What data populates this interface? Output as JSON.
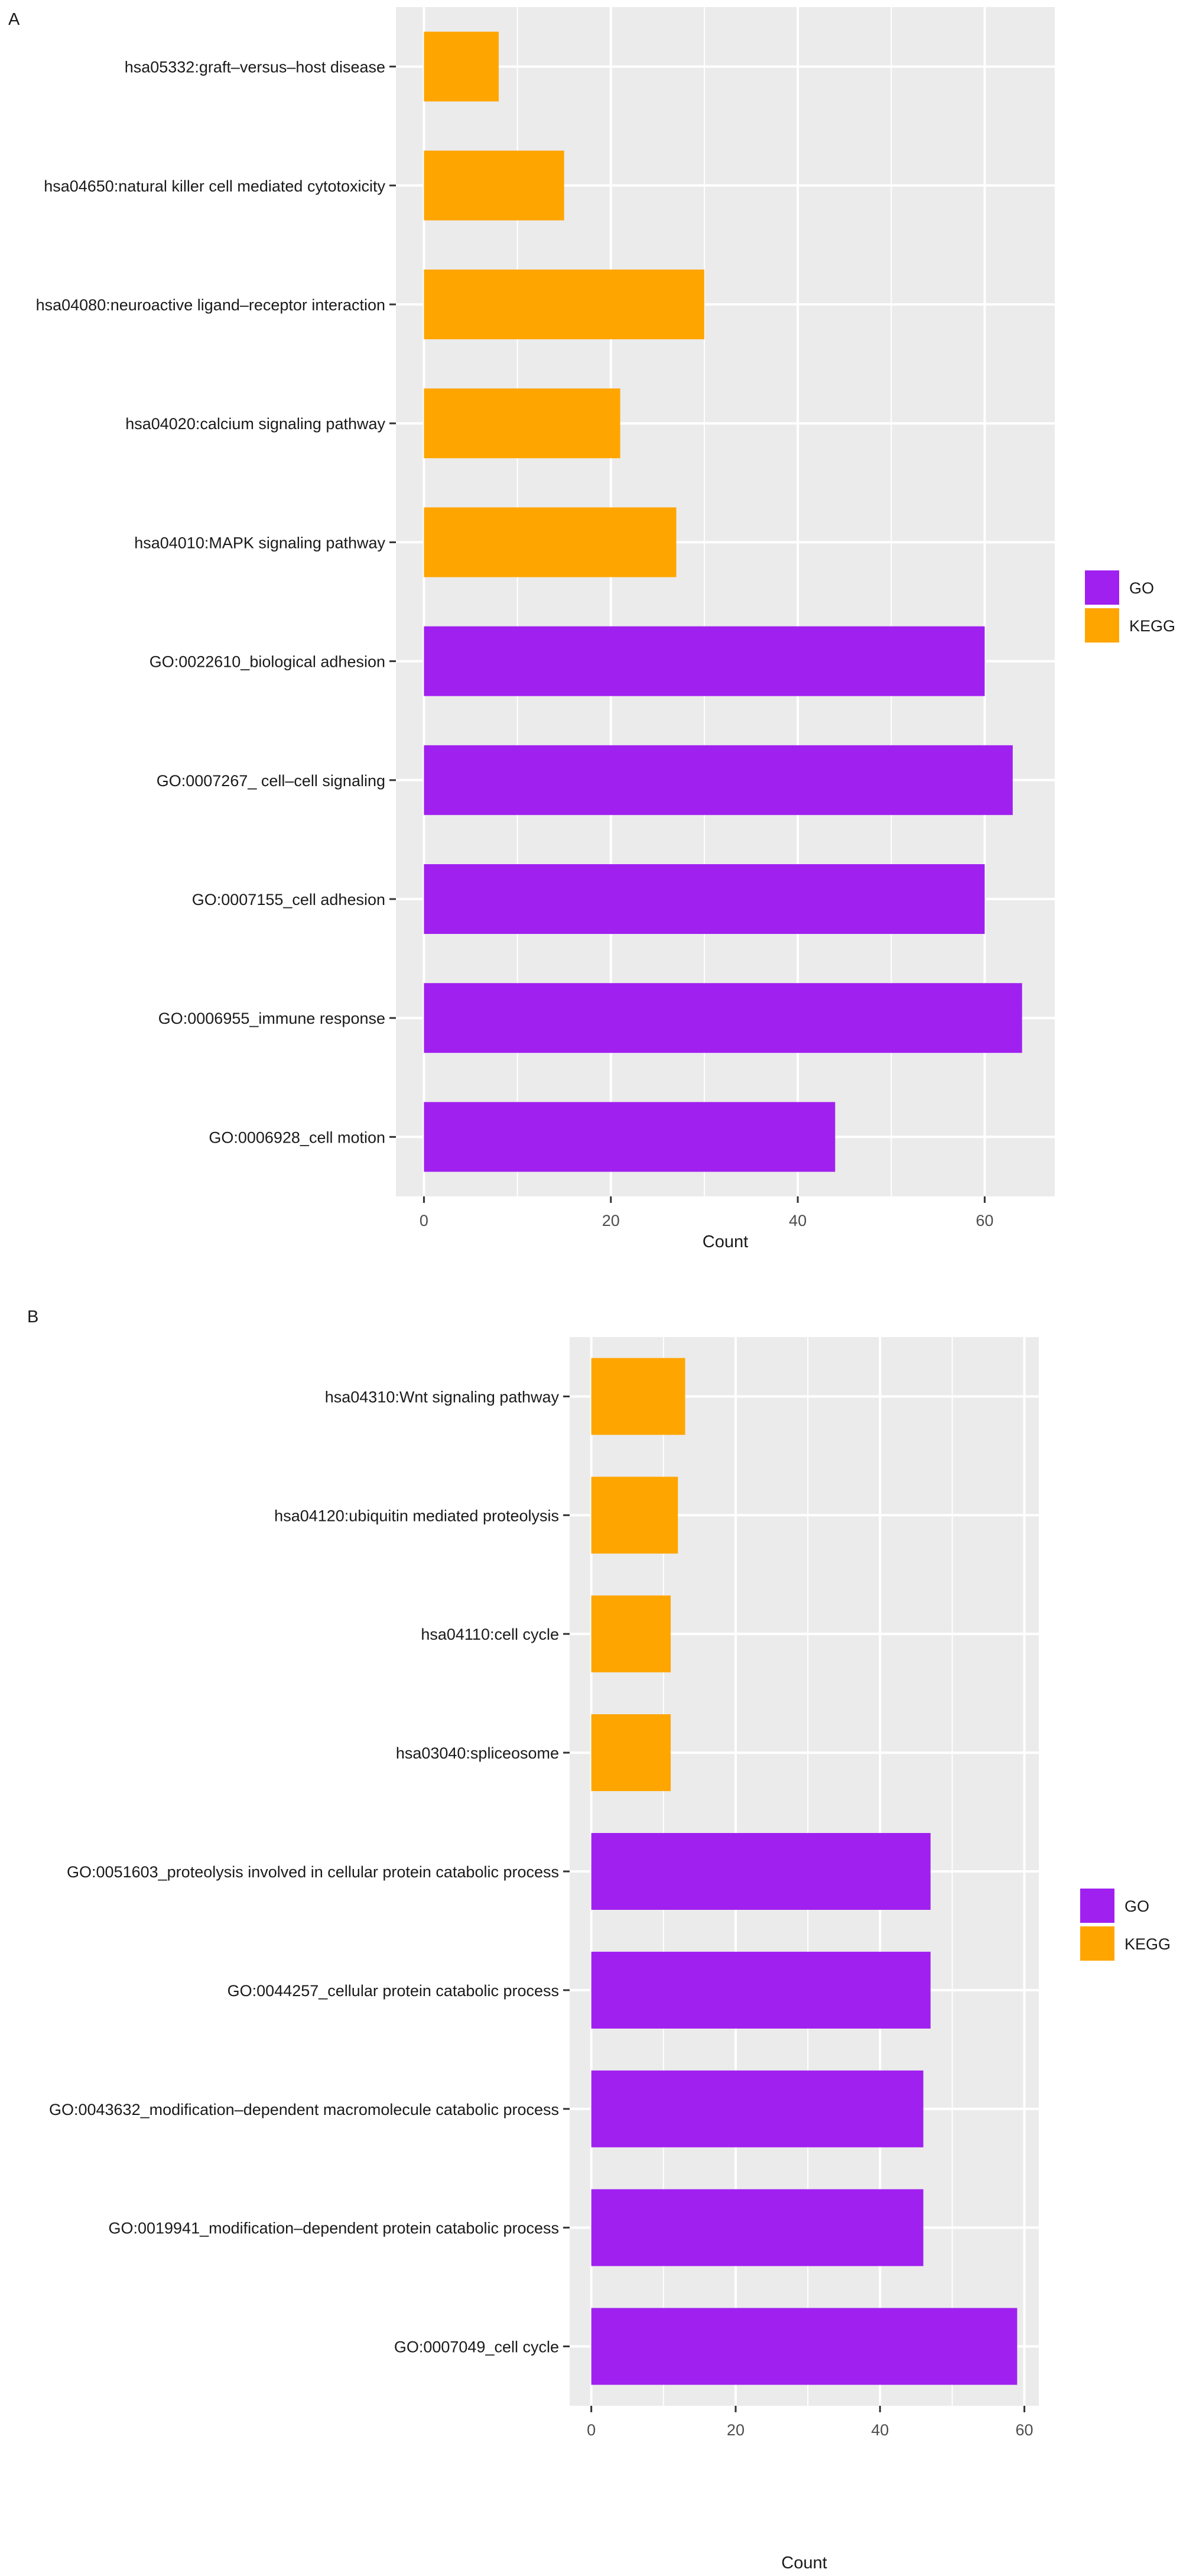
{
  "chart_data": [
    {
      "type": "bar",
      "panel_label": "A",
      "orientation": "horizontal",
      "categories": [
        "hsa05332:graft–versus–host disease",
        "hsa04650:natural killer cell mediated cytotoxicity",
        "hsa04080:neuroactive ligand–receptor interaction",
        "hsa04020:calcium signaling pathway",
        "hsa04010:MAPK signaling pathway",
        "GO:0022610_biological adhesion",
        "GO:0007267_ cell–cell signaling",
        "GO:0007155_cell adhesion",
        "GO:0006955_immune response",
        "GO:0006928_cell motion"
      ],
      "values": [
        8,
        15,
        30,
        21,
        27,
        60,
        63,
        60,
        64,
        44
      ],
      "groups": [
        "KEGG",
        "KEGG",
        "KEGG",
        "KEGG",
        "KEGG",
        "GO",
        "GO",
        "GO",
        "GO",
        "GO"
      ],
      "xlabel": "Count",
      "xlim": [
        -3,
        67.5
      ],
      "xticks": [
        0,
        20,
        40,
        60
      ],
      "legend": {
        "position": "right",
        "entries": [
          "GO",
          "KEGG"
        ]
      },
      "grid": true
    },
    {
      "type": "bar",
      "panel_label": "B",
      "orientation": "horizontal",
      "categories": [
        "hsa04310:Wnt signaling pathway",
        "hsa04120:ubiquitin mediated proteolysis",
        "hsa04110:cell cycle",
        "hsa03040:spliceosome",
        "GO:0051603_proteolysis involved in cellular protein catabolic process",
        "GO:0044257_cellular protein catabolic process",
        "GO:0043632_modification–dependent macromolecule catabolic process",
        "GO:0019941_modification–dependent protein catabolic process",
        "GO:0007049_cell cycle"
      ],
      "values": [
        13,
        12,
        11,
        11,
        47,
        47,
        46,
        46,
        59
      ],
      "groups": [
        "KEGG",
        "KEGG",
        "KEGG",
        "KEGG",
        "GO",
        "GO",
        "GO",
        "GO",
        "GO"
      ],
      "xlabel": "Count",
      "xlim": [
        -3,
        62
      ],
      "xticks": [
        0,
        20,
        40,
        60
      ],
      "legend": {
        "position": "right",
        "entries": [
          "GO",
          "KEGG"
        ]
      },
      "grid": true
    }
  ],
  "colors": {
    "GO": "#a020f0",
    "KEGG": "#ffa500",
    "panel_background": "#ebebeb",
    "grid": "#ffffff",
    "text": "#1a1a1a",
    "axis_text": "#4d4d4d"
  }
}
